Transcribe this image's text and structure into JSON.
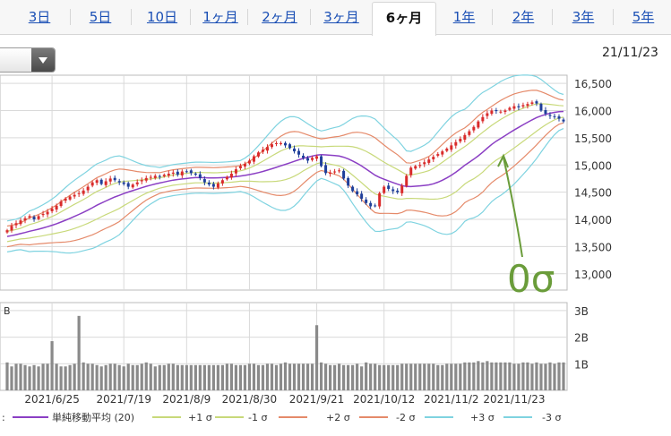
{
  "tabs": [
    "3日",
    "5日",
    "10日",
    "1ヶ月",
    "2ヶ月",
    "3ヶ月",
    "6ヶ月",
    "1年",
    "2年",
    "3年",
    "5年"
  ],
  "active_tab": "6ヶ月",
  "date_label": "21/11/23",
  "annotation": {
    "text": "0σ",
    "color": "#6a9c3a"
  },
  "chart_data": {
    "type": "candlestick",
    "price_axis": {
      "min": 12700,
      "max": 16650,
      "ticks": [
        13000,
        13500,
        14000,
        14500,
        15000,
        15500,
        16000,
        16500
      ],
      "tick_labels": [
        "13,000",
        "13,500",
        "14,000",
        "14,500",
        "15,000",
        "15,500",
        "16,000",
        "16,500"
      ]
    },
    "volume_axis": {
      "ticks": [
        1,
        2,
        3
      ],
      "tick_labels": [
        "1B",
        "2B",
        "3B"
      ],
      "max": 3.3,
      "unit_label": "B"
    },
    "x_labels": [
      "2021/6/25",
      "2021/7/19",
      "2021/8/9",
      "2021/8/30",
      "2021/9/21",
      "2021/10/12",
      "2021/11/2",
      "2021/11/23"
    ],
    "sessions": 125,
    "label_sessions": [
      10,
      26,
      40,
      54,
      69,
      84,
      99,
      113
    ],
    "closes": [
      13800,
      13880,
      13930,
      13980,
      14020,
      14060,
      14000,
      14060,
      14100,
      14140,
      14200,
      14250,
      14330,
      14380,
      14420,
      14450,
      14480,
      14530,
      14600,
      14680,
      14720,
      14650,
      14700,
      14750,
      14720,
      14680,
      14650,
      14600,
      14640,
      14680,
      14720,
      14760,
      14780,
      14800,
      14780,
      14820,
      14840,
      14860,
      14820,
      14880,
      14880,
      14850,
      14820,
      14760,
      14680,
      14640,
      14600,
      14660,
      14720,
      14780,
      14840,
      14920,
      14980,
      15020,
      15080,
      15160,
      15230,
      15280,
      15330,
      15380,
      15400,
      15400,
      15360,
      15310,
      15250,
      15190,
      15130,
      15080,
      15130,
      15160,
      14980,
      14850,
      14860,
      14880,
      14900,
      14750,
      14620,
      14520,
      14460,
      14380,
      14300,
      14240,
      14250,
      14480,
      14600,
      14560,
      14520,
      14500,
      14620,
      14800,
      14950,
      14980,
      15000,
      15050,
      15100,
      15150,
      15200,
      15250,
      15300,
      15360,
      15420,
      15480,
      15550,
      15620,
      15700,
      15800,
      15880,
      15950,
      16000,
      15990,
      15980,
      16000,
      16050,
      16080,
      16060,
      16100,
      16120,
      16150,
      16130,
      16000,
      15940,
      15900,
      15880,
      15850,
      15800
    ],
    "volumes": [
      1.05,
      0.9,
      1.0,
      1.0,
      0.95,
      0.9,
      0.95,
      0.9,
      1.0,
      1.0,
      1.85,
      1.0,
      0.9,
      0.9,
      0.95,
      1.0,
      2.8,
      1.05,
      1.0,
      1.0,
      0.95,
      0.9,
      0.95,
      1.0,
      1.0,
      0.95,
      0.9,
      1.0,
      0.95,
      0.95,
      1.0,
      1.05,
      1.0,
      0.9,
      0.95,
      0.95,
      1.0,
      1.0,
      0.95,
      0.95,
      0.95,
      0.95,
      0.95,
      0.95,
      0.95,
      0.95,
      0.95,
      0.95,
      0.95,
      1.0,
      1.0,
      0.95,
      0.95,
      0.95,
      1.0,
      1.0,
      0.95,
      0.95,
      1.0,
      1.0,
      0.95,
      1.0,
      1.05,
      1.0,
      1.0,
      1.0,
      1.0,
      1.0,
      1.0,
      2.45,
      1.05,
      1.0,
      0.95,
      0.95,
      1.0,
      0.95,
      0.95,
      0.95,
      1.0,
      0.9,
      1.05,
      1.0,
      1.0,
      0.95,
      0.95,
      0.95,
      0.95,
      0.95,
      1.0,
      1.0,
      1.0,
      1.0,
      1.0,
      1.0,
      1.0,
      1.0,
      0.95,
      0.95,
      1.0,
      1.0,
      1.0,
      1.0,
      1.05,
      1.05,
      1.05,
      1.1,
      1.05,
      1.1,
      1.05,
      1.05,
      1.05,
      1.05,
      1.05,
      1.0,
      1.0,
      1.05,
      1.05,
      1.0,
      1.05,
      1.0,
      1.0,
      1.05,
      1.0,
      1.05,
      1.05
    ],
    "legend": {
      "prefix": ":",
      "items": [
        {
          "label": "単純移動平均 (20)",
          "color": "#8b3fc4"
        },
        {
          "label": "+1 σ",
          "color": "#c8d97a"
        },
        {
          "label": "-1 σ",
          "color": "#c8d97a"
        },
        {
          "label": "+2 σ",
          "color": "#e58a6a"
        },
        {
          "label": "-2 σ",
          "color": "#e58a6a"
        },
        {
          "label": "+3 σ",
          "color": "#7fd3e0"
        },
        {
          "label": "-3 σ",
          "color": "#7fd3e0"
        }
      ]
    },
    "colors": {
      "up": "#d92b2b",
      "down": "#1f3f9a",
      "volume": "#8a8a8a",
      "grid": "#d9d9d9"
    }
  }
}
